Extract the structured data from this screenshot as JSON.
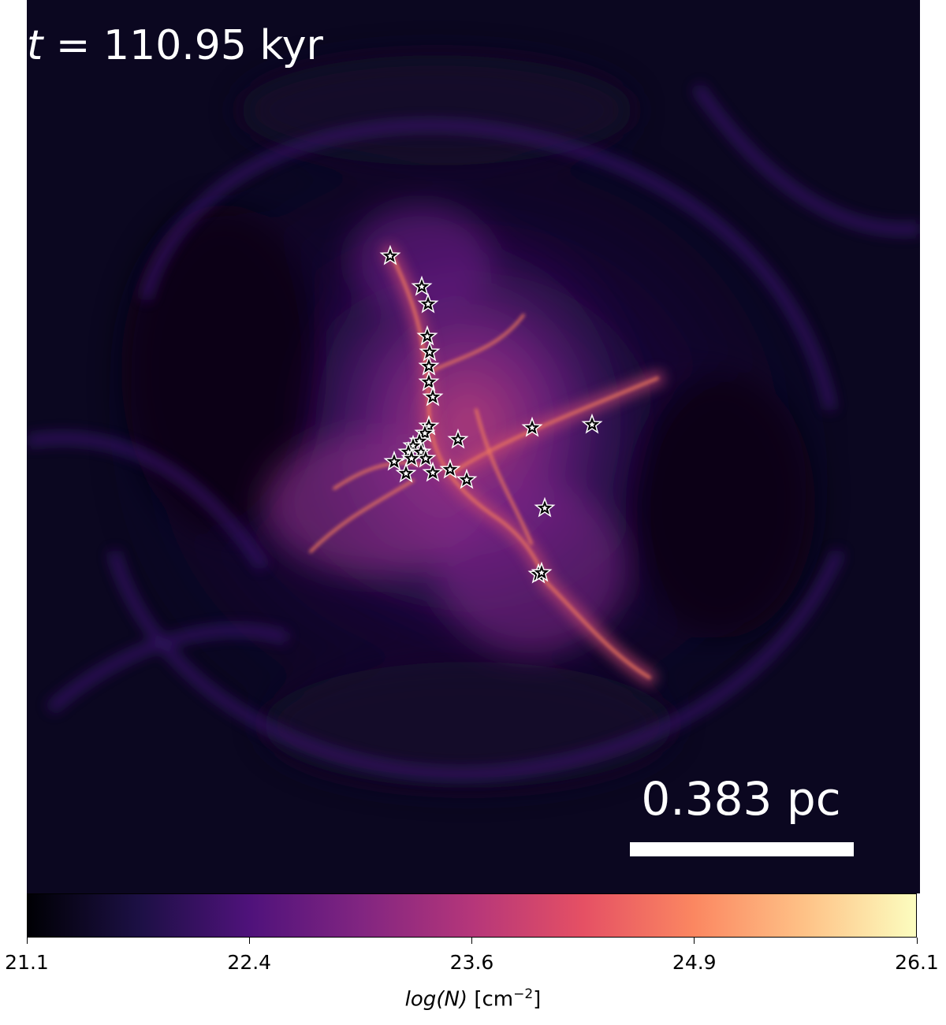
{
  "time_label": {
    "symbol": "t",
    "text": " = 110.95 kyr"
  },
  "scale_bar": {
    "label": "0.383 pc"
  },
  "colorbar": {
    "ticks": [
      "21.1",
      "22.4",
      "23.6",
      "24.9",
      "26.1"
    ],
    "label_prefix": "log",
    "label_var": "(N)",
    "label_unit": " [cm",
    "label_exp": "−2",
    "label_close": "]",
    "colormap": "magma",
    "colors": [
      "#000004",
      "#1c1044",
      "#4f127b",
      "#812581",
      "#b5367a",
      "#e55064",
      "#fb8761",
      "#fec287",
      "#fcfdbf"
    ]
  },
  "image": {
    "colors": {
      "background": "#0b0720",
      "filament": "#f07a5c",
      "glow": "#8a2f86",
      "star_fill": "#000000",
      "star_outline": "#ffffff"
    }
  }
}
